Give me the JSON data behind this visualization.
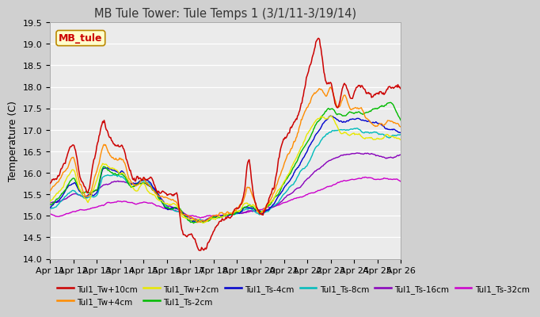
{
  "title": "MB Tule Tower: Tule Temps 1 (3/1/11-3/19/14)",
  "ylabel": "Temperature (C)",
  "ylim": [
    14.0,
    19.5
  ],
  "yticks": [
    14.0,
    14.5,
    15.0,
    15.5,
    16.0,
    16.5,
    17.0,
    17.5,
    18.0,
    18.5,
    19.0,
    19.5
  ],
  "legend_label": "MB_tule",
  "series": [
    {
      "label": "Tul1_Tw+10cm",
      "color": "#cc0000"
    },
    {
      "label": "Tul1_Tw+4cm",
      "color": "#ff8c00"
    },
    {
      "label": "Tul1_Tw+2cm",
      "color": "#e8e800"
    },
    {
      "label": "Tul1_Ts-2cm",
      "color": "#00bb00"
    },
    {
      "label": "Tul1_Ts-4cm",
      "color": "#0000cc"
    },
    {
      "label": "Tul1_Ts-8cm",
      "color": "#00bbbb"
    },
    {
      "label": "Tul1_Ts-16cm",
      "color": "#8800bb"
    },
    {
      "label": "Tul1_Ts-32cm",
      "color": "#cc00cc"
    }
  ],
  "xtick_labels": [
    "Apr 11",
    "Apr 12",
    "Apr 13",
    "Apr 14",
    "Apr 15",
    "Apr 16",
    "Apr 17",
    "Apr 18",
    "Apr 19",
    "Apr 20",
    "Apr 21",
    "Apr 22",
    "Apr 23",
    "Apr 24",
    "Apr 25",
    "Apr 26"
  ]
}
